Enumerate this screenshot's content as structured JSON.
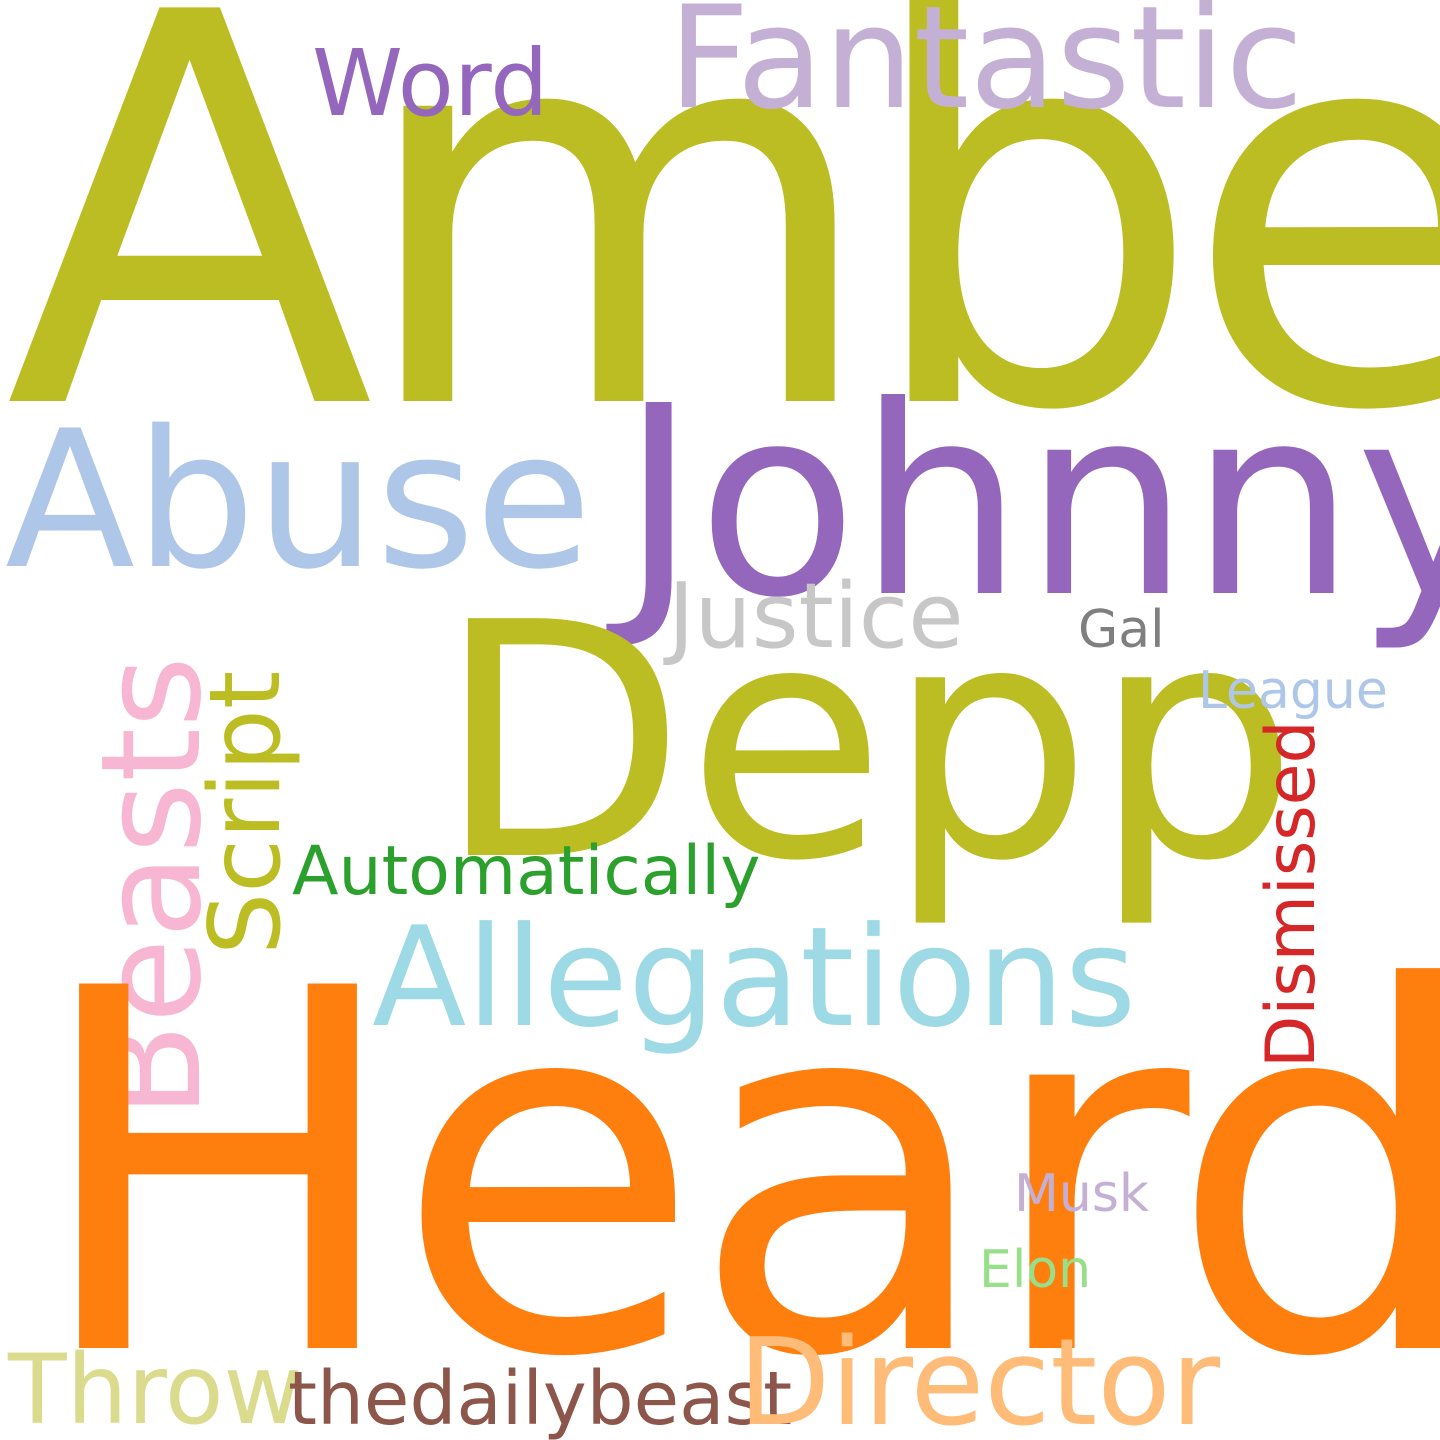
{
  "words": [
    {
      "text": "Amber",
      "color": "#bcbd22"
    },
    {
      "text": "Heard",
      "color": "#ff7f0e"
    },
    {
      "text": "Depp",
      "color": "#bcbd22"
    },
    {
      "text": "Johnny",
      "color": "#9467bd"
    },
    {
      "text": "Abuse",
      "color": "#aec7e8"
    },
    {
      "text": "Fantastic",
      "color": "#c5b0d5"
    },
    {
      "text": "Allegations",
      "color": "#9edae5"
    },
    {
      "text": "Beasts",
      "color": "#f7b6d2"
    },
    {
      "text": "Script",
      "color": "#bcbd22"
    },
    {
      "text": "Director",
      "color": "#ffbb78"
    },
    {
      "text": "Justice",
      "color": "#c7c7c7"
    },
    {
      "text": "Throw",
      "color": "#dbdb8d"
    },
    {
      "text": "thedailybeast",
      "color": "#8c564b"
    },
    {
      "text": "Automatically",
      "color": "#2ca02c"
    },
    {
      "text": "Word",
      "color": "#9467bd"
    },
    {
      "text": "Dismissed",
      "color": "#d62728"
    },
    {
      "text": "League",
      "color": "#aec7e8"
    },
    {
      "text": "Gal",
      "color": "#7f7f7f"
    },
    {
      "text": "Musk",
      "color": "#c5b0d5"
    },
    {
      "text": "Elon",
      "color": "#98df8a"
    }
  ]
}
